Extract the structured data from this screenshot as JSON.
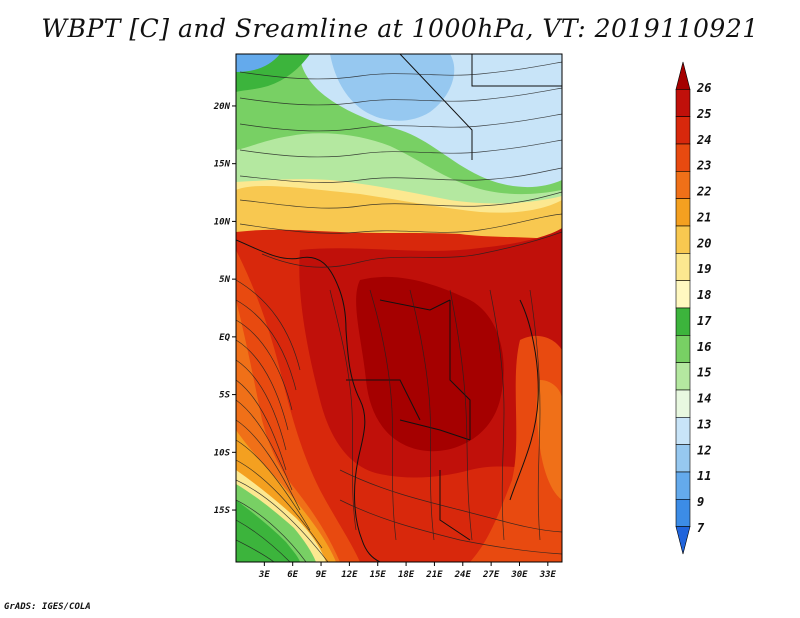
{
  "title": "WBPT [C] and Sreamline at 1000hPa, VT: 2019110921",
  "footer": "GrADS: IGES/COLA",
  "map": {
    "lat_labels": [
      {
        "lat": 20,
        "label": "20N"
      },
      {
        "lat": 15,
        "label": "15N"
      },
      {
        "lat": 10,
        "label": "10N"
      },
      {
        "lat": 5,
        "label": "5N"
      },
      {
        "lat": 0,
        "label": "EQ"
      },
      {
        "lat": -5,
        "label": "5S"
      },
      {
        "lat": -10,
        "label": "10S"
      },
      {
        "lat": -15,
        "label": "15S"
      }
    ],
    "lon_labels": [
      {
        "lon": 3,
        "label": "3E"
      },
      {
        "lon": 6,
        "label": "6E"
      },
      {
        "lon": 9,
        "label": "9E"
      },
      {
        "lon": 12,
        "label": "12E"
      },
      {
        "lon": 15,
        "label": "15E"
      },
      {
        "lon": 18,
        "label": "18E"
      },
      {
        "lon": 21,
        "label": "21E"
      },
      {
        "lon": 24,
        "label": "24E"
      },
      {
        "lon": 27,
        "label": "27E"
      },
      {
        "lon": 30,
        "label": "30E"
      },
      {
        "lon": 33,
        "label": "33E"
      }
    ],
    "lon_range": [
      0,
      34.5
    ],
    "lat_range": [
      -19.5,
      24.5
    ]
  },
  "colorbar": {
    "levels": [
      "26",
      "25",
      "24",
      "23",
      "22",
      "21",
      "20",
      "19",
      "18",
      "17",
      "16",
      "15",
      "14",
      "13",
      "12",
      "11",
      "9",
      "7"
    ],
    "colors": [
      "#a50000",
      "#c0100a",
      "#d8280c",
      "#e84a10",
      "#f07018",
      "#f4a020",
      "#f8c850",
      "#fce890",
      "#fff8c0",
      "#3cb43c",
      "#78d064",
      "#b4e8a0",
      "#e8f8e0",
      "#c8e4f8",
      "#96c8f0",
      "#64aaec",
      "#3c8ce6",
      "#2064dc"
    ]
  }
}
